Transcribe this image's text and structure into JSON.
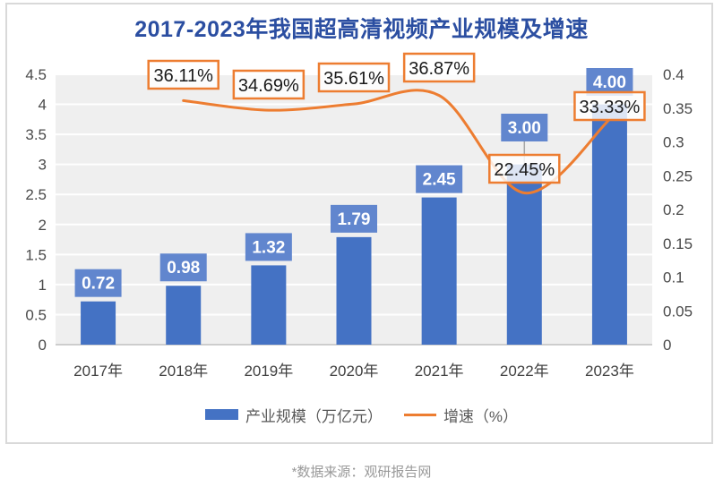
{
  "title": "2017-2023年我国超高清视频产业规模及增速",
  "source_note": "*数据来源：观研报告网",
  "legend": {
    "bar_label": "产业规模（万亿元）",
    "line_label": "增速（%）"
  },
  "colors": {
    "bar": "#4472C4",
    "bar_label_bg": "#6186CE",
    "bar_label_text": "#FFFFFF",
    "line": "#ED7D31",
    "annotation_border": "#ED7D31",
    "annotation_text": "#1A1A1A",
    "title_text": "#2B4EA1",
    "plot_bg": "#EFEFEF",
    "gridline": "#FFFFFF",
    "axis_line": "#C0C0C0",
    "axis_text": "#4A4A4A",
    "legend_text": "#595959",
    "leader_line": "#A6A6A6",
    "card_border": "#D9D9D9",
    "source_text": "#999999"
  },
  "chart_data": {
    "type": "combo-bar-line",
    "categories": [
      "2017年",
      "2018年",
      "2019年",
      "2020年",
      "2021年",
      "2022年",
      "2023年"
    ],
    "series": [
      {
        "name": "产业规模（万亿元）",
        "type": "bar",
        "axis": "left",
        "values": [
          0.72,
          0.98,
          1.32,
          1.79,
          2.45,
          3.0,
          4.0
        ],
        "data_labels": [
          "0.72",
          "0.98",
          "1.32",
          "1.79",
          "2.45",
          "3.00",
          "4.00"
        ]
      },
      {
        "name": "增速（%）",
        "type": "line",
        "axis": "right",
        "start_category": "2018年",
        "values": [
          0.3611,
          0.3469,
          0.3561,
          0.3687,
          0.2245,
          0.3333
        ],
        "data_labels": [
          "36.11%",
          "34.69%",
          "35.61%",
          "36.87%",
          "22.45%",
          "33.33%"
        ]
      }
    ],
    "left_axis": {
      "min": 0,
      "max": 4.5,
      "step": 0.5,
      "tick_labels": [
        "4.5",
        "4",
        "3.5",
        "3",
        "2.5",
        "2",
        "1.5",
        "1",
        "0.5",
        "0"
      ]
    },
    "right_axis": {
      "min": 0,
      "max": 0.4,
      "step": 0.05,
      "tick_labels": [
        "0.4",
        "0.35",
        "0.3",
        "0.25",
        "0.2",
        "0.15",
        "0.1",
        "0.05",
        "0"
      ]
    },
    "grid": true,
    "legend_position": "bottom"
  }
}
